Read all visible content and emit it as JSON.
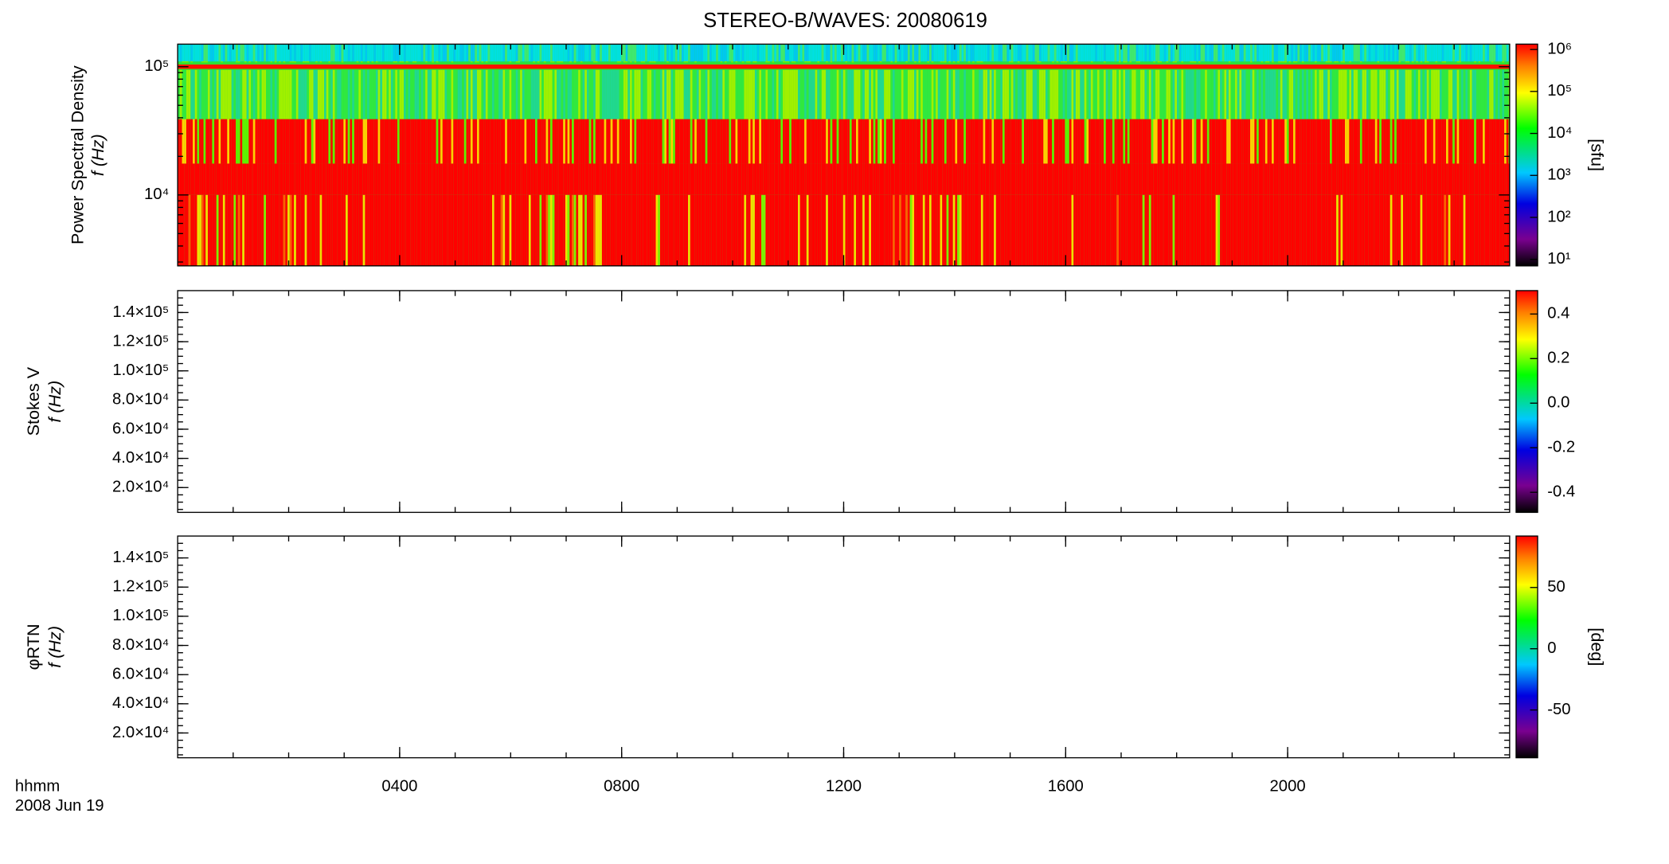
{
  "chart_data": [
    {
      "type": "spectrogram",
      "title": "STEREO-B/WAVES: 20080619",
      "ylabel": [
        "Power Spectral Density",
        "f (Hz)"
      ],
      "ylog": true,
      "ylim": [
        2800,
        150000
      ],
      "yticks": [
        {
          "value": 10000,
          "label": "10⁴"
        },
        {
          "value": 100000,
          "label": "10⁵"
        }
      ],
      "colorbar": {
        "label": "[sfu]",
        "log": true,
        "clim": [
          7,
          1340000
        ],
        "ticks": [
          {
            "value": 10,
            "label": "10¹"
          },
          {
            "value": 100,
            "label": "10²"
          },
          {
            "value": 1000,
            "label": "10³"
          },
          {
            "value": 10000,
            "label": "10⁴"
          },
          {
            "value": 100000,
            "label": "10⁵"
          },
          {
            "value": 1000000,
            "label": "10⁶"
          }
        ]
      }
    },
    {
      "type": "spectrogram",
      "ylabel": [
        "Stokes V",
        "f (Hz)"
      ],
      "ylog": false,
      "ylim": [
        3000,
        155000
      ],
      "yticks": [
        {
          "value": 20000,
          "label": "2.0×10⁴"
        },
        {
          "value": 40000,
          "label": "4.0×10⁴"
        },
        {
          "value": 60000,
          "label": "6.0×10⁴"
        },
        {
          "value": 80000,
          "label": "8.0×10⁴"
        },
        {
          "value": 100000,
          "label": "1.0×10⁵"
        },
        {
          "value": 120000,
          "label": "1.2×10⁵"
        },
        {
          "value": 140000,
          "label": "1.4×10⁵"
        }
      ],
      "colorbar": {
        "log": false,
        "clim": [
          -0.49,
          0.505
        ],
        "ticks": [
          {
            "value": -0.4,
            "label": "-0.4"
          },
          {
            "value": -0.2,
            "label": "-0.2"
          },
          {
            "value": 0,
            "label": "0.0"
          },
          {
            "value": 0.2,
            "label": "0.2"
          },
          {
            "value": 0.4,
            "label": "0.4"
          }
        ]
      }
    },
    {
      "type": "spectrogram",
      "ylabel": [
        "φRTN",
        "f (Hz)"
      ],
      "ylog": false,
      "ylim": [
        3000,
        155000
      ],
      "yticks": [
        {
          "value": 20000,
          "label": "2.0×10⁴"
        },
        {
          "value": 40000,
          "label": "4.0×10⁴"
        },
        {
          "value": 60000,
          "label": "6.0×10⁴"
        },
        {
          "value": 80000,
          "label": "8.0×10⁴"
        },
        {
          "value": 100000,
          "label": "1.0×10⁵"
        },
        {
          "value": 120000,
          "label": "1.2×10⁵"
        },
        {
          "value": 140000,
          "label": "1.4×10⁵"
        }
      ],
      "colorbar": {
        "label": "[deg]",
        "log": false,
        "clim": [
          -89,
          92
        ],
        "ticks": [
          -50,
          0,
          50
        ]
      },
      "xlabel": [
        "hhmm",
        "2008 Jun 19"
      ],
      "xlim": [
        0,
        24
      ],
      "xticks": [
        {
          "value": 4,
          "label": "0400"
        },
        {
          "value": 8,
          "label": "0800"
        },
        {
          "value": 12,
          "label": "1200"
        },
        {
          "value": 16,
          "label": "1600"
        },
        {
          "value": 20,
          "label": "2000"
        }
      ]
    }
  ]
}
